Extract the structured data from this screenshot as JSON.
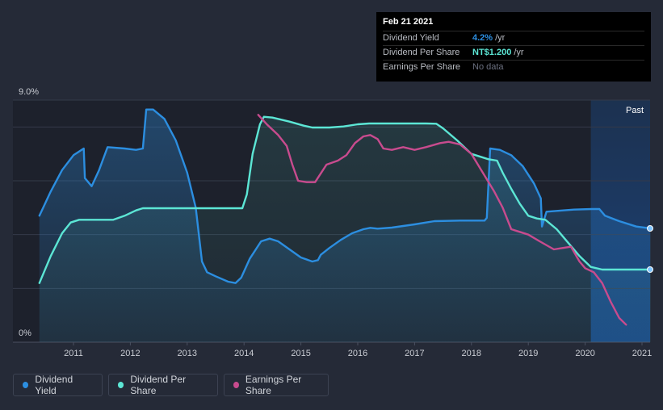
{
  "chart_data": {
    "type": "line",
    "x_ticks": [
      "2011",
      "2012",
      "2013",
      "2014",
      "2015",
      "2016",
      "2017",
      "2018",
      "2019",
      "2020",
      "2021"
    ],
    "y_ticks": [
      "9.0%",
      "0%"
    ],
    "past_label": "Past",
    "ylim": [
      0,
      9.0
    ],
    "xlim": [
      2010.4,
      2021.15
    ],
    "forecast_start": 2020.1,
    "grid": true,
    "series": [
      {
        "name": "Dividend Yield",
        "color": "#2c8ee0",
        "area": true,
        "points": [
          [
            2010.4,
            4.7
          ],
          [
            2010.6,
            5.6
          ],
          [
            2010.8,
            6.4
          ],
          [
            2011.0,
            6.95
          ],
          [
            2011.18,
            7.2
          ],
          [
            2011.2,
            6.1
          ],
          [
            2011.32,
            5.8
          ],
          [
            2011.45,
            6.4
          ],
          [
            2011.6,
            7.25
          ],
          [
            2011.9,
            7.2
          ],
          [
            2012.1,
            7.15
          ],
          [
            2012.22,
            7.2
          ],
          [
            2012.28,
            8.65
          ],
          [
            2012.4,
            8.65
          ],
          [
            2012.6,
            8.3
          ],
          [
            2012.8,
            7.5
          ],
          [
            2013.0,
            6.3
          ],
          [
            2013.15,
            5.0
          ],
          [
            2013.26,
            3.0
          ],
          [
            2013.35,
            2.6
          ],
          [
            2013.5,
            2.45
          ],
          [
            2013.72,
            2.25
          ],
          [
            2013.85,
            2.2
          ],
          [
            2013.95,
            2.4
          ],
          [
            2014.1,
            3.1
          ],
          [
            2014.3,
            3.75
          ],
          [
            2014.45,
            3.85
          ],
          [
            2014.6,
            3.75
          ],
          [
            2014.8,
            3.45
          ],
          [
            2015.0,
            3.15
          ],
          [
            2015.2,
            3.0
          ],
          [
            2015.3,
            3.05
          ],
          [
            2015.35,
            3.25
          ],
          [
            2015.5,
            3.5
          ],
          [
            2015.7,
            3.8
          ],
          [
            2015.9,
            4.05
          ],
          [
            2016.1,
            4.2
          ],
          [
            2016.22,
            4.25
          ],
          [
            2016.35,
            4.22
          ],
          [
            2016.6,
            4.26
          ],
          [
            2016.8,
            4.32
          ],
          [
            2017.0,
            4.38
          ],
          [
            2017.2,
            4.45
          ],
          [
            2017.35,
            4.5
          ],
          [
            2017.8,
            4.52
          ],
          [
            2018.23,
            4.52
          ],
          [
            2018.27,
            4.62
          ],
          [
            2018.33,
            7.2
          ],
          [
            2018.5,
            7.15
          ],
          [
            2018.7,
            6.95
          ],
          [
            2018.9,
            6.55
          ],
          [
            2019.1,
            5.9
          ],
          [
            2019.22,
            5.35
          ],
          [
            2019.24,
            4.3
          ],
          [
            2019.32,
            4.85
          ],
          [
            2019.5,
            4.88
          ],
          [
            2019.8,
            4.93
          ],
          [
            2020.12,
            4.95
          ],
          [
            2020.25,
            4.95
          ],
          [
            2020.35,
            4.7
          ],
          [
            2020.6,
            4.5
          ],
          [
            2020.9,
            4.3
          ],
          [
            2021.15,
            4.23
          ]
        ]
      },
      {
        "name": "Dividend Per Share",
        "color": "#5ce6d5",
        "area": true,
        "points": [
          [
            2010.4,
            2.2
          ],
          [
            2010.6,
            3.2
          ],
          [
            2010.8,
            4.05
          ],
          [
            2010.95,
            4.45
          ],
          [
            2011.1,
            4.55
          ],
          [
            2011.7,
            4.55
          ],
          [
            2011.9,
            4.7
          ],
          [
            2012.1,
            4.9
          ],
          [
            2012.22,
            4.98
          ],
          [
            2013.97,
            4.98
          ],
          [
            2014.05,
            5.5
          ],
          [
            2014.15,
            7.0
          ],
          [
            2014.28,
            8.1
          ],
          [
            2014.35,
            8.38
          ],
          [
            2014.5,
            8.35
          ],
          [
            2014.8,
            8.2
          ],
          [
            2015.05,
            8.05
          ],
          [
            2015.2,
            7.98
          ],
          [
            2015.5,
            7.98
          ],
          [
            2015.75,
            8.02
          ],
          [
            2016.0,
            8.1
          ],
          [
            2016.2,
            8.13
          ],
          [
            2016.5,
            8.13
          ],
          [
            2017.2,
            8.13
          ],
          [
            2017.38,
            8.12
          ],
          [
            2017.5,
            7.95
          ],
          [
            2017.75,
            7.5
          ],
          [
            2018.0,
            7.0
          ],
          [
            2018.3,
            6.8
          ],
          [
            2018.45,
            6.75
          ],
          [
            2018.55,
            6.3
          ],
          [
            2018.7,
            5.7
          ],
          [
            2018.85,
            5.15
          ],
          [
            2019.0,
            4.7
          ],
          [
            2019.15,
            4.6
          ],
          [
            2019.3,
            4.55
          ],
          [
            2019.5,
            4.2
          ],
          [
            2019.7,
            3.7
          ],
          [
            2019.9,
            3.2
          ],
          [
            2020.1,
            2.8
          ],
          [
            2020.3,
            2.7
          ],
          [
            2021.15,
            2.7
          ]
        ]
      },
      {
        "name": "Earnings Per Share",
        "color": "#c84b8e",
        "area": false,
        "points": [
          [
            2014.25,
            8.45
          ],
          [
            2014.4,
            8.1
          ],
          [
            2014.6,
            7.7
          ],
          [
            2014.75,
            7.3
          ],
          [
            2014.85,
            6.6
          ],
          [
            2014.95,
            6.0
          ],
          [
            2015.1,
            5.95
          ],
          [
            2015.25,
            5.95
          ],
          [
            2015.45,
            6.6
          ],
          [
            2015.65,
            6.75
          ],
          [
            2015.8,
            6.95
          ],
          [
            2015.95,
            7.4
          ],
          [
            2016.1,
            7.65
          ],
          [
            2016.22,
            7.7
          ],
          [
            2016.35,
            7.55
          ],
          [
            2016.45,
            7.2
          ],
          [
            2016.6,
            7.15
          ],
          [
            2016.8,
            7.25
          ],
          [
            2017.0,
            7.15
          ],
          [
            2017.2,
            7.25
          ],
          [
            2017.45,
            7.4
          ],
          [
            2017.6,
            7.45
          ],
          [
            2017.8,
            7.35
          ],
          [
            2018.0,
            7.0
          ],
          [
            2018.2,
            6.3
          ],
          [
            2018.4,
            5.6
          ],
          [
            2018.55,
            5.0
          ],
          [
            2018.7,
            4.2
          ],
          [
            2018.85,
            4.1
          ],
          [
            2019.0,
            4.0
          ],
          [
            2019.2,
            3.75
          ],
          [
            2019.45,
            3.45
          ],
          [
            2019.6,
            3.5
          ],
          [
            2019.75,
            3.55
          ],
          [
            2019.9,
            3.0
          ],
          [
            2020.0,
            2.75
          ],
          [
            2020.15,
            2.6
          ],
          [
            2020.3,
            2.2
          ],
          [
            2020.45,
            1.5
          ],
          [
            2020.6,
            0.9
          ],
          [
            2020.72,
            0.65
          ]
        ]
      }
    ]
  },
  "tooltip": {
    "date": "Feb 21 2021",
    "rows": [
      {
        "label": "Dividend Yield",
        "value": "4.2%",
        "unit": "/yr",
        "color": "#2c8ee0"
      },
      {
        "label": "Dividend Per Share",
        "value": "NT$1.200",
        "unit": "/yr",
        "color": "#5ce6d5"
      },
      {
        "label": "Earnings Per Share",
        "value": "No data",
        "unit": "",
        "color": "#6b7080"
      }
    ]
  },
  "legend": [
    {
      "label": "Dividend Yield",
      "color": "#2c8ee0"
    },
    {
      "label": "Dividend Per Share",
      "color": "#5ce6d5"
    },
    {
      "label": "Earnings Per Share",
      "color": "#c84b8e"
    }
  ]
}
